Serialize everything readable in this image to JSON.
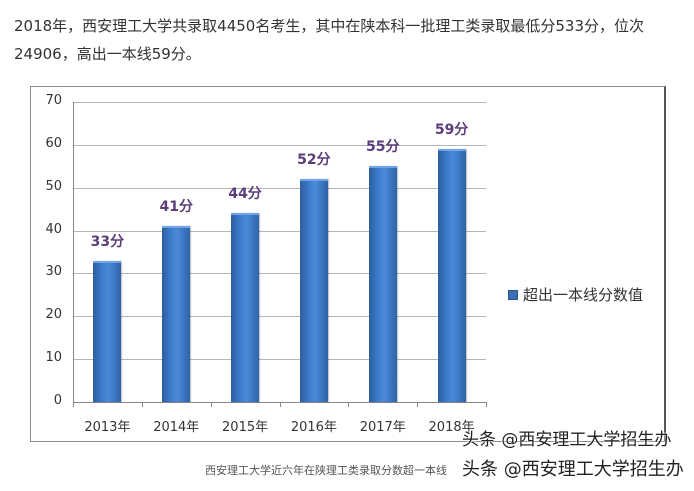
{
  "intro": {
    "text": "2018年，西安理工大学共录取4450名考生，其中在陕本科一批理工类录取最低分533分，位次24906，高出一本线59分。"
  },
  "chart_data": {
    "type": "bar",
    "title": "",
    "categories": [
      "2013年",
      "2014年",
      "2015年",
      "2016年",
      "2017年",
      "2018年"
    ],
    "series": [
      {
        "name": "超出一本线分数值",
        "values": [
          33,
          41,
          44,
          52,
          55,
          59
        ],
        "color": "#3a78c8"
      }
    ],
    "data_labels": [
      "33分",
      "41分",
      "44分",
      "52分",
      "55分",
      "59分"
    ],
    "xlabel": "",
    "ylabel": "",
    "ylim": [
      0,
      70
    ],
    "yticks": [
      0,
      10,
      20,
      30,
      40,
      50,
      60,
      70
    ],
    "grid": true,
    "legend_position": "right",
    "label_color": "#5a3d7a"
  },
  "legend": {
    "label": "超出一本线分数值"
  },
  "caption": "西安理工大学近六年在陕理工类录取分数超一本线",
  "watermarks": [
    "头条 @西安理工大学招生办",
    "头条 @西安理工大学招生办"
  ]
}
